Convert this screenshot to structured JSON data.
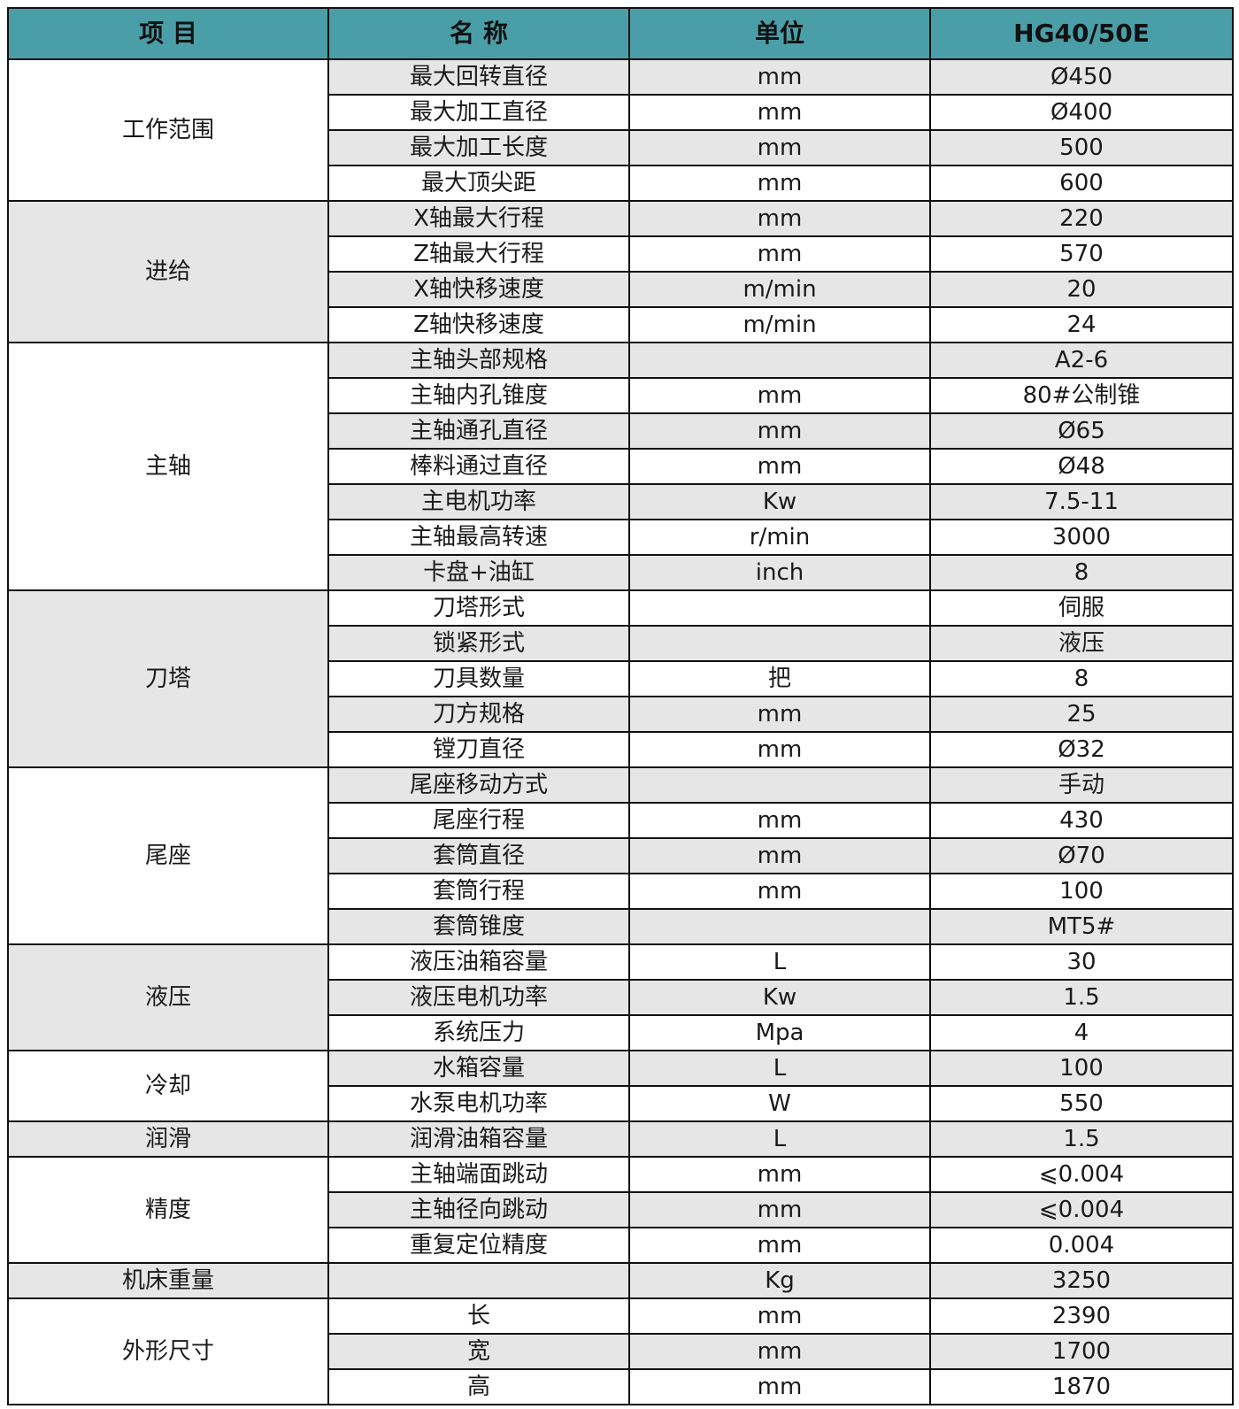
{
  "header": [
    "项 目",
    "名 称",
    "单位",
    "HG40/50E"
  ],
  "accent_color": "#4a9ea7",
  "groups": [
    {
      "category": "工作范围",
      "rows": [
        {
          "name": "最大回转直径",
          "unit": "mm",
          "value": "Ø450"
        },
        {
          "name": "最大加工直径",
          "unit": "mm",
          "value": "Ø400"
        },
        {
          "name": "最大加工长度",
          "unit": "mm",
          "value": "500"
        },
        {
          "name": "最大顶尖距",
          "unit": "mm",
          "value": "600"
        }
      ]
    },
    {
      "category": "进给",
      "rows": [
        {
          "name": "X轴最大行程",
          "unit": "mm",
          "value": "220"
        },
        {
          "name": "Z轴最大行程",
          "unit": "mm",
          "value": "570"
        },
        {
          "name": "X轴快移速度",
          "unit": "m/min",
          "value": "20"
        },
        {
          "name": "Z轴快移速度",
          "unit": "m/min",
          "value": "24"
        }
      ]
    },
    {
      "category": "主轴",
      "rows": [
        {
          "name": "主轴头部规格",
          "unit": "",
          "value": "A2-6"
        },
        {
          "name": "主轴内孔锥度",
          "unit": "mm",
          "value": "80#公制锥"
        },
        {
          "name": "主轴通孔直径",
          "unit": "mm",
          "value": "Ø65"
        },
        {
          "name": "棒料通过直径",
          "unit": "mm",
          "value": "Ø48"
        },
        {
          "name": "主电机功率",
          "unit": "Kw",
          "value": "7.5-11"
        },
        {
          "name": "主轴最高转速",
          "unit": "r/min",
          "value": "3000"
        },
        {
          "name": "卡盘+油缸",
          "unit": "inch",
          "value": "8"
        }
      ]
    },
    {
      "category": "刀塔",
      "rows": [
        {
          "name": "刀塔形式",
          "unit": "",
          "value": "伺服"
        },
        {
          "name": "锁紧形式",
          "unit": "",
          "value": "液压"
        },
        {
          "name": "刀具数量",
          "unit": "把",
          "value": "8"
        },
        {
          "name": "刀方规格",
          "unit": "mm",
          "value": "25"
        },
        {
          "name": "镗刀直径",
          "unit": "mm",
          "value": "Ø32"
        }
      ]
    },
    {
      "category": "尾座",
      "rows": [
        {
          "name": "尾座移动方式",
          "unit": "",
          "value": "手动"
        },
        {
          "name": "尾座行程",
          "unit": "mm",
          "value": "430"
        },
        {
          "name": "套筒直径",
          "unit": "mm",
          "value": "Ø70"
        },
        {
          "name": "套筒行程",
          "unit": "mm",
          "value": "100"
        },
        {
          "name": "套筒锥度",
          "unit": "",
          "value": "MT5#"
        }
      ]
    },
    {
      "category": "液压",
      "rows": [
        {
          "name": "液压油箱容量",
          "unit": "L",
          "value": "30"
        },
        {
          "name": "液压电机功率",
          "unit": "Kw",
          "value": "1.5"
        },
        {
          "name": "系统压力",
          "unit": "Mpa",
          "value": "4"
        }
      ]
    },
    {
      "category": "冷却",
      "rows": [
        {
          "name": "水箱容量",
          "unit": "L",
          "value": "100"
        },
        {
          "name": "水泵电机功率",
          "unit": "W",
          "value": "550"
        }
      ]
    },
    {
      "category": "润滑",
      "rows": [
        {
          "name": "润滑油箱容量",
          "unit": "L",
          "value": "1.5"
        }
      ]
    },
    {
      "category": "精度",
      "rows": [
        {
          "name": "主轴端面跳动",
          "unit": "mm",
          "value": "⩽0.004"
        },
        {
          "name": "主轴径向跳动",
          "unit": "mm",
          "value": "⩽0.004"
        },
        {
          "name": "重复定位精度",
          "unit": "mm",
          "value": "0.004"
        }
      ]
    },
    {
      "category": "机床重量",
      "rows": [
        {
          "name": "",
          "unit": "Kg",
          "value": "3250"
        }
      ]
    },
    {
      "category": "外形尺寸",
      "rows": [
        {
          "name": "长",
          "unit": "mm",
          "value": "2390"
        },
        {
          "name": "宽",
          "unit": "mm",
          "value": "1700"
        },
        {
          "name": "高",
          "unit": "mm",
          "value": "1870"
        }
      ]
    }
  ]
}
